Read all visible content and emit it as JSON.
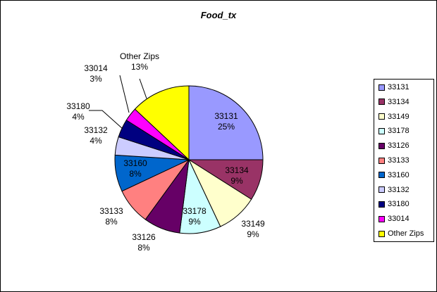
{
  "chart_data": {
    "type": "pie",
    "title": "Food_tx",
    "slices": [
      {
        "name": "33131",
        "value": 25,
        "label": "25%",
        "color": "#9999FF"
      },
      {
        "name": "33134",
        "value": 9,
        "label": "9%",
        "color": "#993366"
      },
      {
        "name": "33149",
        "value": 9,
        "label": "9%",
        "color": "#FFFFCC"
      },
      {
        "name": "33178",
        "value": 9,
        "label": "9%",
        "color": "#CCFFFF"
      },
      {
        "name": "33126",
        "value": 8,
        "label": "8%",
        "color": "#660066"
      },
      {
        "name": "33133",
        "value": 8,
        "label": "8%",
        "color": "#FF8080"
      },
      {
        "name": "33160",
        "value": 8,
        "label": "8%",
        "color": "#0066CC"
      },
      {
        "name": "33132",
        "value": 4,
        "label": "4%",
        "color": "#CCCCFF"
      },
      {
        "name": "33180",
        "value": 4,
        "label": "4%",
        "color": "#000080"
      },
      {
        "name": "33014",
        "value": 3,
        "label": "3%",
        "color": "#FF00FF"
      },
      {
        "name": "Other Zips",
        "value": 13,
        "label": "13%",
        "color": "#FFFF00"
      }
    ],
    "legend_position": "right"
  }
}
